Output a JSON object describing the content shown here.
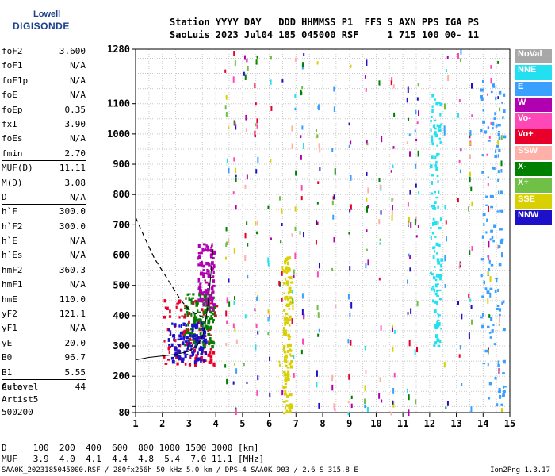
{
  "logo": {
    "line1": "Lowell",
    "line2": "DIGISONDE"
  },
  "header": {
    "line1": "Station YYYY DAY   DDD HHMMSS P1  FFS S AXN PPS IGA PS",
    "line2": "SaoLuis 2023 Jul04 185 045000 RSF     1 715 100 00- 11"
  },
  "params": [
    {
      "label": "foF2",
      "value": "3.600"
    },
    {
      "label": "foF1",
      "value": "N/A"
    },
    {
      "label": "foF1p",
      "value": "N/A"
    },
    {
      "label": "foE",
      "value": "N/A"
    },
    {
      "label": "foEp",
      "value": "0.35"
    },
    {
      "label": "fxI",
      "value": "3.90"
    },
    {
      "label": "foEs",
      "value": "N/A"
    },
    {
      "label": "fmin",
      "value": "2.70"
    },
    {
      "label": "MUF(D)",
      "value": "11.11"
    },
    {
      "label": "M(D)",
      "value": "3.08"
    },
    {
      "label": "D",
      "value": "N/A"
    },
    {
      "label": "h`F",
      "value": "300.0"
    },
    {
      "label": "h`F2",
      "value": "300.0"
    },
    {
      "label": "h`E",
      "value": "N/A"
    },
    {
      "label": "h`Es",
      "value": "N/A"
    },
    {
      "label": "hmF2",
      "value": "360.3"
    },
    {
      "label": "hmF1",
      "value": "N/A"
    },
    {
      "label": "hmE",
      "value": "110.0"
    },
    {
      "label": "yF2",
      "value": "121.1"
    },
    {
      "label": "yF1",
      "value": "N/A"
    },
    {
      "label": "yE",
      "value": "20.0"
    },
    {
      "label": "B0",
      "value": "96.7"
    },
    {
      "label": "B1",
      "value": "5.55"
    },
    {
      "label": "C-level",
      "value": "44"
    }
  ],
  "auto": {
    "line1": "Auto:",
    "line2": "Artist5",
    "line3": "500200"
  },
  "footer": {
    "d_row": "D     100  200  400  600  800 1000 1500 3000 [km]",
    "muf_row": "MUF   3.9  4.0  4.1  4.4  4.8  5.4  7.0 11.1 [MHz]"
  },
  "bottom_info": "SAA0K_2023185045000.RSF / 280fx256h 50 kHz 5.0 km / DPS-4 SAA0K 903 / 2.6 S 315.8 E",
  "version": "Ion2Png 1.3.17",
  "legend": [
    {
      "label": "NoVal",
      "color": "#a8a8a8"
    },
    {
      "label": "NNE",
      "color": "#22e0f0"
    },
    {
      "label": "E",
      "color": "#3aa0ff"
    },
    {
      "label": "W",
      "color": "#b000b0"
    },
    {
      "label": "Vo-",
      "color": "#ff48b8"
    },
    {
      "label": "Vo+",
      "color": "#e8002a"
    },
    {
      "label": "SSW",
      "color": "#ffb0a8"
    },
    {
      "label": "X-",
      "color": "#008000"
    },
    {
      "label": "X+",
      "color": "#70c048"
    },
    {
      "label": "SSE",
      "color": "#d8d000"
    },
    {
      "label": "NNW",
      "color": "#1c10c8"
    }
  ],
  "chart_data": {
    "type": "scatter",
    "xlabel": "",
    "ylabel": "",
    "xlim": [
      1,
      15
    ],
    "ylim": [
      80,
      1280
    ],
    "x_ticks": [
      1,
      2,
      3,
      4,
      5,
      6,
      7,
      8,
      9,
      10,
      11,
      12,
      13,
      14,
      15
    ],
    "y_ticks": [
      80,
      100,
      200,
      300,
      400,
      500,
      600,
      700,
      800,
      900,
      1000,
      1100,
      1280
    ],
    "grid": true,
    "legend_position": "right",
    "f_trace": [
      [
        1.0,
        254
      ],
      [
        1.5,
        262
      ],
      [
        2.0,
        267
      ],
      [
        2.5,
        272
      ],
      [
        3.0,
        282
      ],
      [
        3.3,
        300
      ],
      [
        3.5,
        330
      ],
      [
        3.6,
        370
      ],
      [
        3.7,
        430
      ],
      [
        3.8,
        520
      ],
      [
        3.9,
        620
      ]
    ],
    "dashed_profile": [
      [
        1.0,
        725
      ],
      [
        1.3,
        665
      ],
      [
        1.7,
        590
      ],
      [
        2.2,
        520
      ],
      [
        2.7,
        450
      ],
      [
        3.0,
        420
      ],
      [
        3.3,
        405
      ],
      [
        3.6,
        390
      ]
    ],
    "echo_clusters": [
      {
        "x_range": [
          2.0,
          4.0
        ],
        "y_range": [
          240,
          460
        ],
        "color": "#e8002a"
      },
      {
        "x_range": [
          2.8,
          3.9
        ],
        "y_range": [
          300,
          480
        ],
        "color": "#008000"
      },
      {
        "x_range": [
          2.2,
          3.6
        ],
        "y_range": [
          250,
          380
        ],
        "color": "#1c10c8"
      },
      {
        "x_range": [
          3.3,
          3.9
        ],
        "y_range": [
          420,
          640
        ],
        "color": "#b000b0"
      },
      {
        "x_range": [
          6.5,
          6.8
        ],
        "y_range": [
          80,
          600
        ],
        "color": "#d8d000"
      },
      {
        "x_range": [
          12.0,
          12.4
        ],
        "y_range": [
          300,
          1140
        ],
        "color": "#22e0f0"
      },
      {
        "x_range": [
          13.9,
          14.8
        ],
        "y_range": [
          100,
          1180
        ],
        "color": "#3aa0ff"
      }
    ]
  }
}
